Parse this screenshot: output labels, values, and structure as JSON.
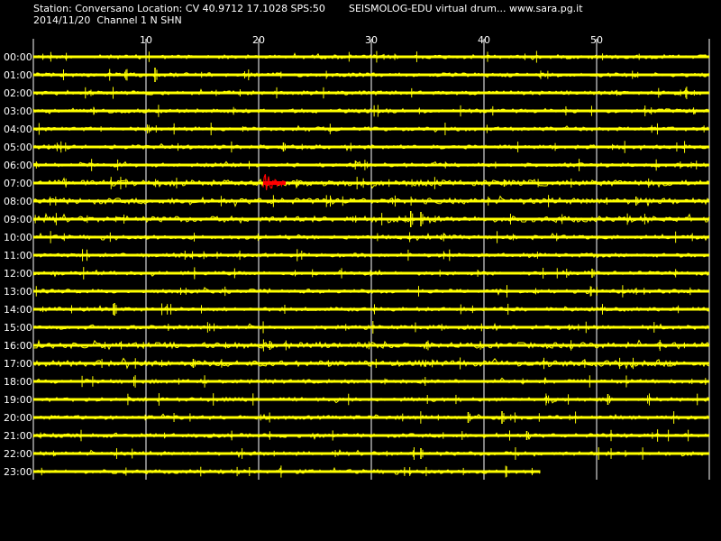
{
  "header": {
    "station_line": "Station: Conversano Location: CV 40.9712 17.1028 SPS:50",
    "title_line": "SEISMOLOG-EDU virtual drum... www.sara.pg.it",
    "date_channel_line": "2014/11/20  Channel 1 N SHN"
  },
  "chart_data": {
    "type": "line",
    "title": "SEISMOLOG-EDU virtual drum... www.sara.pg.it",
    "xlabel": "",
    "ylabel": "",
    "xlim": [
      0,
      60
    ],
    "x_ticks": [
      10,
      20,
      30,
      40,
      50
    ],
    "grid": true,
    "rows": [
      "00:00",
      "01:00",
      "02:00",
      "03:00",
      "04:00",
      "05:00",
      "06:00",
      "07:00",
      "08:00",
      "09:00",
      "10:00",
      "11:00",
      "12:00",
      "13:00",
      "14:00",
      "15:00",
      "16:00",
      "17:00",
      "18:00",
      "19:00",
      "20:00",
      "21:00",
      "22:00",
      "23:00"
    ],
    "last_row_end_minute": 45,
    "trace_color": "#ffff00",
    "event_color": "#ff0000",
    "events": [
      {
        "row": "07:00",
        "start_minute": 20.4,
        "end_minute": 22.4,
        "color": "#ff0000"
      }
    ],
    "spikes": [
      {
        "row": "01:00",
        "minute": 10.8,
        "amp": 0.8
      },
      {
        "row": "05:00",
        "minute": 22.2,
        "amp": 0.5
      },
      {
        "row": "07:00",
        "minute": 23.4,
        "amp": 0.4
      },
      {
        "row": "07:00",
        "minute": 41.8,
        "amp": 0.4
      },
      {
        "row": "08:00",
        "minute": 53.5,
        "amp": 0.5
      },
      {
        "row": "09:00",
        "minute": 33.5,
        "amp": 0.9
      },
      {
        "row": "09:00",
        "minute": 34.4,
        "amp": 0.8
      },
      {
        "row": "12:00",
        "minute": 49.6,
        "amp": 0.5
      },
      {
        "row": "14:00",
        "minute": 7.2,
        "amp": 0.7
      },
      {
        "row": "16:00",
        "minute": 21.0,
        "amp": 0.5
      },
      {
        "row": "17:00",
        "minute": 14.2,
        "amp": 0.5
      },
      {
        "row": "19:00",
        "minute": 51.0,
        "amp": 0.6
      },
      {
        "row": "20:00",
        "minute": 38.6,
        "amp": 0.6
      },
      {
        "row": "20:00",
        "minute": 41.6,
        "amp": 0.7
      },
      {
        "row": "21:00",
        "minute": 43.8,
        "amp": 0.5
      },
      {
        "row": "22:00",
        "minute": 34.4,
        "amp": 0.6
      }
    ],
    "noisy_rows": [
      "07:00",
      "08:00",
      "09:00",
      "16:00",
      "17:00"
    ]
  }
}
